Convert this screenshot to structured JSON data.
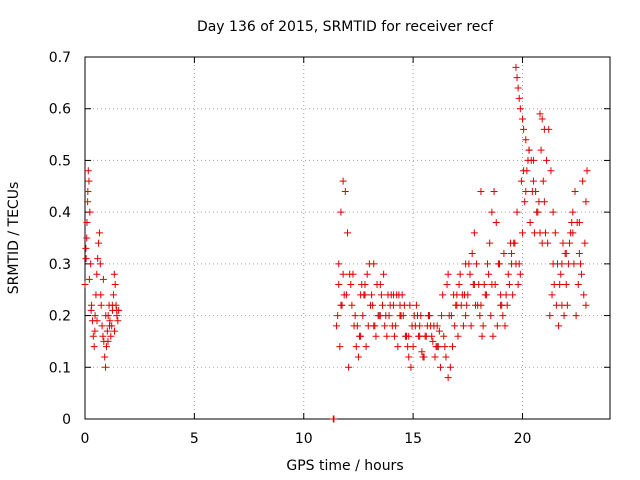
{
  "chart_data": {
    "type": "scatter",
    "title": "Day 136 of 2015, SRMTID for receiver recf",
    "xlabel": "GPS time / hours",
    "ylabel": "SRMTID / TECUs",
    "xlim": [
      0,
      24
    ],
    "ylim": [
      0,
      0.7
    ],
    "xticks": [
      0,
      5,
      10,
      15,
      20
    ],
    "xtick_labels": [
      "0",
      "5",
      "10",
      "15",
      "20"
    ],
    "yticks": [
      0,
      0.1,
      0.2,
      0.3,
      0.4,
      0.5,
      0.6,
      0.7
    ],
    "ytick_labels": [
      "0",
      "0.1",
      "0.2",
      "0.3",
      "0.4",
      "0.5",
      "0.6",
      "0.7"
    ],
    "grid": true,
    "marker": "+",
    "series": [
      {
        "name": "SRMTID",
        "color": "#e00000",
        "x": [
          0.0,
          0.04,
          0.08,
          0.12,
          0.15,
          0.18,
          0.22,
          0.26,
          0.3,
          0.34,
          0.38,
          0.42,
          0.46,
          0.5,
          0.54,
          0.58,
          0.62,
          0.66,
          0.7,
          0.74,
          0.78,
          0.82,
          0.86,
          0.9,
          0.94,
          0.98,
          1.02,
          1.06,
          1.1,
          1.14,
          1.18,
          1.22,
          1.26,
          1.3,
          1.34,
          1.38,
          1.42,
          1.46,
          1.5,
          1.54,
          0.05,
          0.09,
          0.13,
          0.2,
          0.28,
          0.45,
          0.55,
          0.72,
          0.84,
          0.95,
          1.05,
          1.12,
          1.25,
          1.35,
          1.45,
          11.35,
          11.38,
          11.5,
          11.6,
          11.7,
          11.8,
          11.9,
          12.0,
          12.1,
          12.2,
          12.3,
          12.4,
          12.5,
          12.6,
          12.7,
          12.8,
          12.9,
          13.0,
          13.1,
          13.2,
          13.3,
          13.4,
          13.5,
          13.6,
          13.7,
          13.8,
          13.9,
          14.0,
          14.1,
          14.2,
          14.3,
          14.4,
          14.5,
          14.6,
          14.7,
          14.8,
          14.9,
          15.0,
          15.1,
          15.2,
          15.3,
          15.4,
          15.5,
          15.6,
          15.7,
          15.8,
          15.9,
          16.0,
          16.1,
          16.2,
          16.3,
          16.4,
          16.5,
          16.6,
          16.7,
          16.8,
          16.9,
          17.0,
          17.1,
          17.2,
          17.3,
          17.4,
          17.5,
          17.6,
          17.7,
          17.8,
          17.9,
          18.0,
          18.1,
          18.2,
          18.3,
          18.4,
          18.5,
          18.6,
          18.7,
          18.8,
          18.9,
          19.0,
          19.1,
          19.2,
          19.3,
          19.4,
          19.5,
          19.6,
          19.7,
          19.8,
          19.9,
          20.0,
          20.1,
          20.2,
          20.3,
          20.4,
          20.5,
          20.6,
          20.7,
          20.8,
          20.9,
          21.0,
          21.1,
          21.2,
          21.3,
          21.4,
          21.5,
          21.6,
          21.7,
          21.8,
          21.9,
          22.0,
          22.1,
          22.2,
          22.3,
          22.4,
          22.5,
          22.6,
          22.7,
          22.8,
          22.9,
          11.55,
          11.75,
          11.95,
          12.15,
          12.35,
          12.55,
          12.75,
          12.95,
          13.15,
          13.35,
          13.55,
          13.75,
          13.95,
          14.15,
          14.35,
          14.55,
          14.75,
          14.95,
          15.15,
          15.35,
          15.55,
          15.75,
          15.95,
          16.15,
          16.35,
          16.55,
          16.75,
          16.95,
          17.15,
          17.35,
          17.55,
          17.75,
          17.95,
          18.15,
          18.35,
          18.55,
          18.75,
          18.95,
          19.15,
          19.35,
          19.55,
          19.75,
          19.95,
          20.15,
          20.35,
          20.55,
          20.75,
          20.95,
          21.15,
          21.35,
          21.55,
          21.75,
          21.95,
          22.15,
          22.35,
          22.55,
          22.75,
          22.95,
          11.65,
          11.85,
          12.05,
          12.25,
          12.45,
          12.65,
          12.85,
          13.05,
          13.25,
          13.45,
          13.65,
          13.85,
          14.05,
          14.25,
          14.45,
          14.65,
          14.85,
          15.05,
          15.25,
          15.45,
          15.65,
          15.85,
          16.05,
          16.25,
          16.45,
          16.65,
          16.85,
          17.05,
          17.25,
          17.45,
          17.65,
          17.85,
          18.05,
          18.25,
          18.45,
          18.65,
          18.85,
          19.05,
          19.25,
          19.45,
          19.65,
          19.85,
          20.05,
          20.25,
          20.45,
          20.65,
          20.85,
          21.05,
          21.25,
          21.45,
          21.65,
          21.85,
          22.05,
          22.25,
          22.45,
          22.65,
          22.85,
          11.6,
          11.7,
          11.8,
          12.6,
          12.8,
          13.2,
          13.5,
          14.1,
          14.4,
          14.8,
          15.3,
          15.7,
          16.1,
          16.6,
          17.0,
          17.4,
          17.8,
          18.1,
          18.6,
          19.0,
          19.5,
          19.7,
          19.75,
          19.8,
          19.85,
          19.9,
          20.0,
          20.05,
          20.15,
          20.3,
          20.5,
          20.8,
          20.9,
          21.0,
          21.4,
          21.8,
          22.0,
          22.3,
          22.6,
          22.9
        ],
        "y": [
          0.26,
          0.33,
          0.35,
          0.42,
          0.48,
          0.46,
          0.4,
          0.3,
          0.22,
          0.19,
          0.16,
          0.14,
          0.2,
          0.24,
          0.28,
          0.31,
          0.34,
          0.36,
          0.3,
          0.22,
          0.18,
          0.16,
          0.15,
          0.12,
          0.1,
          0.14,
          0.17,
          0.2,
          0.22,
          0.19,
          0.16,
          0.18,
          0.21,
          0.24,
          0.28,
          0.26,
          0.22,
          0.2,
          0.19,
          0.21,
          0.31,
          0.38,
          0.44,
          0.27,
          0.21,
          0.17,
          0.19,
          0.24,
          0.27,
          0.2,
          0.15,
          0.18,
          0.22,
          0.17,
          0.21,
          0.0,
          0.0,
          0.18,
          0.3,
          0.4,
          0.46,
          0.44,
          0.36,
          0.28,
          0.22,
          0.18,
          0.14,
          0.12,
          0.16,
          0.2,
          0.24,
          0.28,
          0.3,
          0.24,
          0.18,
          0.16,
          0.2,
          0.26,
          0.22,
          0.18,
          0.16,
          0.2,
          0.24,
          0.22,
          0.18,
          0.14,
          0.2,
          0.24,
          0.22,
          0.16,
          0.12,
          0.1,
          0.14,
          0.18,
          0.2,
          0.16,
          0.13,
          0.12,
          0.16,
          0.2,
          0.18,
          0.15,
          0.12,
          0.14,
          0.17,
          0.2,
          0.16,
          0.12,
          0.08,
          0.1,
          0.14,
          0.18,
          0.22,
          0.26,
          0.22,
          0.18,
          0.2,
          0.24,
          0.28,
          0.32,
          0.36,
          0.3,
          0.26,
          0.22,
          0.18,
          0.24,
          0.3,
          0.34,
          0.4,
          0.44,
          0.38,
          0.3,
          0.24,
          0.2,
          0.18,
          0.22,
          0.26,
          0.3,
          0.34,
          0.3,
          0.26,
          0.28,
          0.36,
          0.42,
          0.48,
          0.52,
          0.5,
          0.46,
          0.44,
          0.4,
          0.36,
          0.34,
          0.42,
          0.5,
          0.56,
          0.48,
          0.4,
          0.36,
          0.3,
          0.26,
          0.22,
          0.2,
          0.26,
          0.3,
          0.36,
          0.4,
          0.44,
          0.38,
          0.32,
          0.28,
          0.24,
          0.22,
          0.2,
          0.22,
          0.24,
          0.26,
          0.2,
          0.16,
          0.24,
          0.18,
          0.22,
          0.26,
          0.24,
          0.2,
          0.22,
          0.16,
          0.24,
          0.2,
          0.14,
          0.18,
          0.22,
          0.2,
          0.16,
          0.2,
          0.18,
          0.14,
          0.24,
          0.26,
          0.2,
          0.22,
          0.28,
          0.24,
          0.3,
          0.26,
          0.22,
          0.16,
          0.24,
          0.2,
          0.26,
          0.3,
          0.32,
          0.28,
          0.24,
          0.4,
          0.46,
          0.44,
          0.38,
          0.36,
          0.42,
          0.46,
          0.34,
          0.24,
          0.22,
          0.28,
          0.32,
          0.34,
          0.3,
          0.26,
          0.46,
          0.48,
          0.14,
          0.24,
          0.1,
          0.28,
          0.18,
          0.26,
          0.14,
          0.22,
          0.18,
          0.2,
          0.28,
          0.24,
          0.18,
          0.24,
          0.2,
          0.16,
          0.22,
          0.2,
          0.16,
          0.12,
          0.18,
          0.16,
          0.14,
          0.1,
          0.14,
          0.2,
          0.24,
          0.16,
          0.24,
          0.22,
          0.18,
          0.22,
          0.2,
          0.26,
          0.28,
          0.16,
          0.18,
          0.22,
          0.24,
          0.34,
          0.34,
          0.3,
          0.48,
          0.5,
          0.44,
          0.4,
          0.52,
          0.36,
          0.2,
          0.26,
          0.18,
          0.34,
          0.22,
          0.38,
          0.2,
          0.3,
          0.34,
          0.26,
          0.22,
          0.28,
          0.24,
          0.26,
          0.3,
          0.2,
          0.24,
          0.22,
          0.16,
          0.18,
          0.2,
          0.18,
          0.28,
          0.24,
          0.3,
          0.26,
          0.44,
          0.26,
          0.22,
          0.32,
          0.68,
          0.66,
          0.64,
          0.62,
          0.6,
          0.58,
          0.56,
          0.54,
          0.52,
          0.5,
          0.59,
          0.58,
          0.56,
          0.3,
          0.3,
          0.32,
          0.36,
          0.38,
          0.42
        ]
      }
    ]
  }
}
